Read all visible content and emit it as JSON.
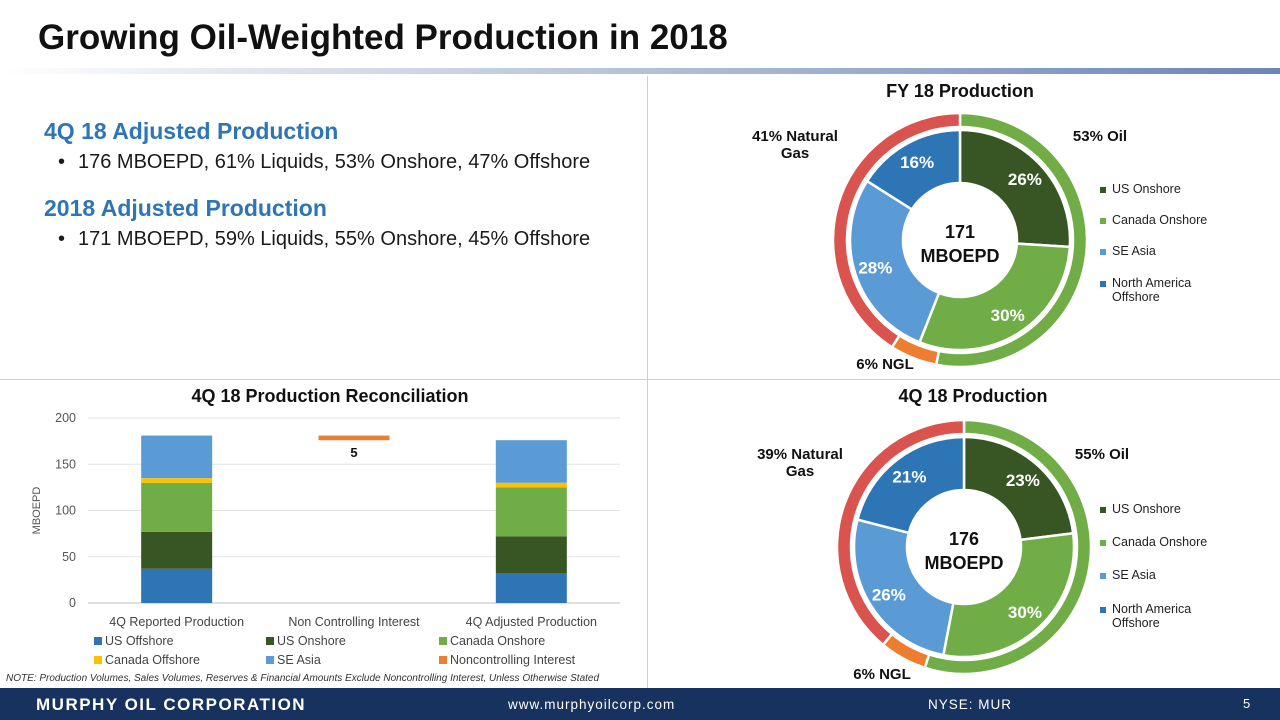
{
  "page": {
    "title": "Growing Oil-Weighted Production in 2018",
    "note": "NOTE:  Production Volumes, Sales Volumes, Reserves & Financial Amounts Exclude Noncontrolling Interest, Unless Otherwise Stated",
    "footer": {
      "company": "MURPHY OIL CORPORATION",
      "website": "www.murphyoilcorp.com",
      "ticker": "NYSE: MUR",
      "page_number": "5"
    }
  },
  "summary": {
    "q4": {
      "heading": "4Q 18 Adjusted Production",
      "bullet": "176 MBOEPD, 61% Liquids, 53% Onshore, 47% Offshore"
    },
    "fy": {
      "heading": "2018 Adjusted Production",
      "bullet": "171 MBOEPD, 59% Liquids, 55% Onshore, 45% Offshore"
    },
    "bullet_char": "•"
  },
  "colors": {
    "us_offshore": "#2e75b6",
    "us_onshore": "#375623",
    "canada_onshore": "#70ad47",
    "canada_offshore": "#ffc000",
    "se_asia": "#5b9bd5",
    "noncontrolling": "#ed7d31",
    "gas_ring": "#d9534f",
    "oil_ring": "#70ad47",
    "ngl_ring": "#ed7d31"
  },
  "chart_data": [
    {
      "type": "bar",
      "stacked": true,
      "title": "4Q 18 Production Reconciliation",
      "ylabel": "MBOEPD",
      "ylim": [
        0,
        200
      ],
      "yticks": [
        0,
        50,
        100,
        150,
        200
      ],
      "grid": true,
      "legend_position": "bottom",
      "categories": [
        "4Q Reported Production",
        "Non Controlling Interest",
        "4Q Adjusted Production"
      ],
      "series": [
        {
          "name": "US Offshore",
          "color": "#2e75b6",
          "values": [
            37,
            0,
            32
          ]
        },
        {
          "name": "US Onshore",
          "color": "#375623",
          "values": [
            40,
            0,
            40
          ]
        },
        {
          "name": "Canada Onshore",
          "color": "#70ad47",
          "values": [
            53,
            0,
            53
          ]
        },
        {
          "name": "Canada Offshore",
          "color": "#ffc000",
          "values": [
            5,
            0,
            5
          ]
        },
        {
          "name": "SE Asia",
          "color": "#5b9bd5",
          "values": [
            46,
            0,
            46
          ]
        },
        {
          "name": "Noncontrolling Interest",
          "color": "#ed7d31",
          "values": [
            0,
            5,
            0
          ]
        }
      ],
      "floating_base": [
        0,
        176,
        0
      ],
      "data_labels": [
        {
          "category": "Non Controlling Interest",
          "text": "5"
        }
      ]
    },
    {
      "type": "pie",
      "title": "FY 18 Production",
      "center_value": "171",
      "center_unit": "MBOEPD",
      "legend_position": "right",
      "slices": [
        {
          "name": "US Onshore",
          "value": 26,
          "label": "26%",
          "color": "#375623"
        },
        {
          "name": "Canada Onshore",
          "value": 30,
          "label": "30%",
          "color": "#70ad47"
        },
        {
          "name": "SE Asia",
          "value": 28,
          "label": "28%",
          "color": "#5b9bd5"
        },
        {
          "name": "North America Offshore",
          "value": 16,
          "label": "16%",
          "color": "#2e75b6"
        }
      ],
      "outer_ring": [
        {
          "name": "Oil",
          "value": 53,
          "label": "53% Oil",
          "color": "#70ad47"
        },
        {
          "name": "NGL",
          "value": 6,
          "label": "6% NGL",
          "color": "#ed7d31"
        },
        {
          "name": "Natural Gas",
          "value": 41,
          "label_line1": "41% Natural",
          "label_line2": "Gas",
          "color": "#d9534f"
        }
      ]
    },
    {
      "type": "pie",
      "title": "4Q 18 Production",
      "center_value": "176",
      "center_unit": "MBOEPD",
      "legend_position": "right",
      "slices": [
        {
          "name": "US Onshore",
          "value": 23,
          "label": "23%",
          "color": "#375623"
        },
        {
          "name": "Canada Onshore",
          "value": 30,
          "label": "30%",
          "color": "#70ad47"
        },
        {
          "name": "SE Asia",
          "value": 26,
          "label": "26%",
          "color": "#5b9bd5"
        },
        {
          "name": "North America Offshore",
          "value": 21,
          "label": "21%",
          "color": "#2e75b6"
        }
      ],
      "outer_ring": [
        {
          "name": "Oil",
          "value": 55,
          "label": "55% Oil",
          "color": "#70ad47"
        },
        {
          "name": "NGL",
          "value": 6,
          "label": "6% NGL",
          "color": "#ed7d31"
        },
        {
          "name": "Natural Gas",
          "value": 39,
          "label_line1": "39% Natural",
          "label_line2": "Gas",
          "color": "#d9534f"
        }
      ]
    }
  ],
  "legends": {
    "donut": [
      {
        "name": "US Onshore",
        "color": "#375623"
      },
      {
        "name": "Canada Onshore",
        "color": "#70ad47"
      },
      {
        "name": "SE Asia",
        "color": "#5b9bd5"
      },
      {
        "name_line1": "North America",
        "name_line2": "Offshore",
        "color": "#2e75b6"
      }
    ]
  }
}
